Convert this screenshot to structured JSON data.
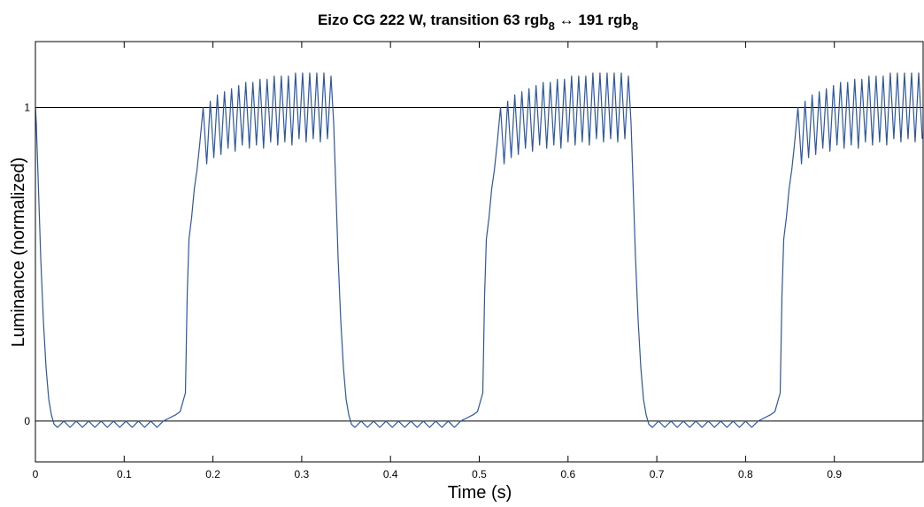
{
  "chart_data": {
    "type": "line",
    "title": [
      {
        "text": "Eizo CG 222 W, transition 63 rgb"
      },
      {
        "text": "8",
        "subscript": true
      },
      {
        "text": " ↔ 191 rgb"
      },
      {
        "text": "8",
        "subscript": true
      }
    ],
    "x_label": "Time (s)",
    "y_label": "Luminance (normalized)",
    "xlim": [
      0,
      1
    ],
    "ylim": [
      -0.13,
      1.21
    ],
    "xticks": [
      0,
      0.1,
      0.2,
      0.3,
      0.4,
      0.5,
      0.6,
      0.7,
      0.8,
      0.9
    ],
    "yticks": [
      0,
      1
    ],
    "grid": "y",
    "color": "#2b57a5",
    "x": [
      0,
      0.001,
      0.003,
      0.006,
      0.009,
      0.012,
      0.015,
      0.018,
      0.021,
      0.025,
      0.032,
      0.039,
      0.046,
      0.053,
      0.06,
      0.067,
      0.074,
      0.081,
      0.088,
      0.095,
      0.102,
      0.109,
      0.116,
      0.123,
      0.13,
      0.137,
      0.144,
      0.151,
      0.158,
      0.163,
      0.166,
      0.169,
      0.171,
      0.173,
      0.176,
      0.179,
      0.182,
      0.185,
      0.189,
      0.193,
      0.197,
      0.201,
      0.205,
      0.209,
      0.213,
      0.217,
      0.221,
      0.225,
      0.229,
      0.233,
      0.237,
      0.241,
      0.245,
      0.249,
      0.253,
      0.257,
      0.261,
      0.265,
      0.269,
      0.273,
      0.277,
      0.281,
      0.285,
      0.289,
      0.293,
      0.297,
      0.301,
      0.305,
      0.309,
      0.313,
      0.317,
      0.321,
      0.325,
      0.329,
      0.333,
      0.335,
      0.336,
      0.338,
      0.341,
      0.344,
      0.347,
      0.35,
      0.353,
      0.356,
      0.36,
      0.367,
      0.374,
      0.381,
      0.388,
      0.395,
      0.402,
      0.409,
      0.416,
      0.423,
      0.43,
      0.437,
      0.444,
      0.451,
      0.458,
      0.465,
      0.472,
      0.479,
      0.486,
      0.493,
      0.498,
      0.501,
      0.504,
      0.506,
      0.508,
      0.511,
      0.514,
      0.517,
      0.52,
      0.524,
      0.528,
      0.532,
      0.536,
      0.54,
      0.544,
      0.548,
      0.552,
      0.556,
      0.56,
      0.564,
      0.568,
      0.572,
      0.576,
      0.58,
      0.584,
      0.588,
      0.592,
      0.596,
      0.6,
      0.604,
      0.608,
      0.612,
      0.616,
      0.62,
      0.624,
      0.628,
      0.632,
      0.636,
      0.64,
      0.644,
      0.648,
      0.652,
      0.656,
      0.66,
      0.664,
      0.668,
      0.67,
      0.671,
      0.673,
      0.676,
      0.679,
      0.682,
      0.685,
      0.688,
      0.691,
      0.695,
      0.702,
      0.709,
      0.716,
      0.723,
      0.73,
      0.737,
      0.744,
      0.751,
      0.758,
      0.765,
      0.772,
      0.779,
      0.786,
      0.793,
      0.8,
      0.807,
      0.814,
      0.821,
      0.828,
      0.833,
      0.836,
      0.839,
      0.841,
      0.843,
      0.846,
      0.849,
      0.852,
      0.855,
      0.859,
      0.863,
      0.867,
      0.871,
      0.875,
      0.879,
      0.883,
      0.887,
      0.891,
      0.895,
      0.899,
      0.903,
      0.907,
      0.911,
      0.915,
      0.919,
      0.923,
      0.927,
      0.931,
      0.935,
      0.939,
      0.943,
      0.947,
      0.951,
      0.955,
      0.959,
      0.963,
      0.967,
      0.971,
      0.975,
      0.979,
      0.983,
      0.987,
      0.991,
      0.995,
      0.999
    ],
    "values": [
      1.0,
      0.95,
      0.78,
      0.52,
      0.32,
      0.17,
      0.07,
      0.02,
      -0.01,
      -0.02,
      0,
      -0.02,
      0,
      -0.02,
      0,
      -0.02,
      0,
      -0.02,
      0,
      -0.02,
      0,
      -0.02,
      0,
      -0.02,
      0,
      -0.02,
      0,
      0.01,
      0.02,
      0.03,
      0.06,
      0.09,
      0.4,
      0.58,
      0.65,
      0.74,
      0.8,
      0.88,
      1.0,
      0.82,
      1.02,
      0.84,
      1.04,
      0.85,
      1.05,
      0.87,
      1.06,
      0.86,
      1.07,
      0.88,
      1.08,
      0.87,
      1.08,
      0.88,
      1.09,
      0.87,
      1.09,
      0.89,
      1.1,
      0.88,
      1.1,
      0.89,
      1.1,
      0.88,
      1.11,
      0.9,
      1.11,
      0.89,
      1.11,
      0.9,
      1.11,
      0.89,
      1.11,
      0.9,
      1.1,
      1.0,
      0.95,
      0.78,
      0.52,
      0.32,
      0.17,
      0.07,
      0.02,
      -0.01,
      -0.02,
      0,
      -0.02,
      0,
      -0.02,
      0,
      -0.02,
      0,
      -0.02,
      0,
      -0.02,
      0,
      -0.02,
      0,
      -0.02,
      0,
      -0.02,
      0,
      0.01,
      0.02,
      0.03,
      0.06,
      0.09,
      0.4,
      0.58,
      0.65,
      0.74,
      0.8,
      0.88,
      1.0,
      0.82,
      1.02,
      0.84,
      1.04,
      0.85,
      1.05,
      0.87,
      1.06,
      0.86,
      1.07,
      0.88,
      1.08,
      0.87,
      1.08,
      0.88,
      1.09,
      0.87,
      1.09,
      0.89,
      1.1,
      0.88,
      1.1,
      0.89,
      1.1,
      0.88,
      1.11,
      0.9,
      1.11,
      0.89,
      1.11,
      0.9,
      1.11,
      0.89,
      1.11,
      0.9,
      1.1,
      1.0,
      0.95,
      0.78,
      0.52,
      0.32,
      0.17,
      0.07,
      0.02,
      -0.01,
      -0.02,
      0,
      -0.02,
      0,
      -0.02,
      0,
      -0.02,
      0,
      -0.02,
      0,
      -0.02,
      0,
      -0.02,
      0,
      -0.02,
      0,
      -0.02,
      0,
      0.01,
      0.02,
      0.03,
      0.06,
      0.09,
      0.4,
      0.58,
      0.65,
      0.74,
      0.8,
      0.88,
      1.0,
      0.82,
      1.02,
      0.84,
      1.04,
      0.85,
      1.05,
      0.87,
      1.06,
      0.86,
      1.07,
      0.88,
      1.08,
      0.87,
      1.08,
      0.88,
      1.09,
      0.87,
      1.09,
      0.89,
      1.1,
      0.88,
      1.1,
      0.89,
      1.1,
      0.88,
      1.11,
      0.9,
      1.11,
      0.89,
      1.11,
      0.9,
      1.11,
      0.89,
      1.11,
      0.9
    ]
  }
}
